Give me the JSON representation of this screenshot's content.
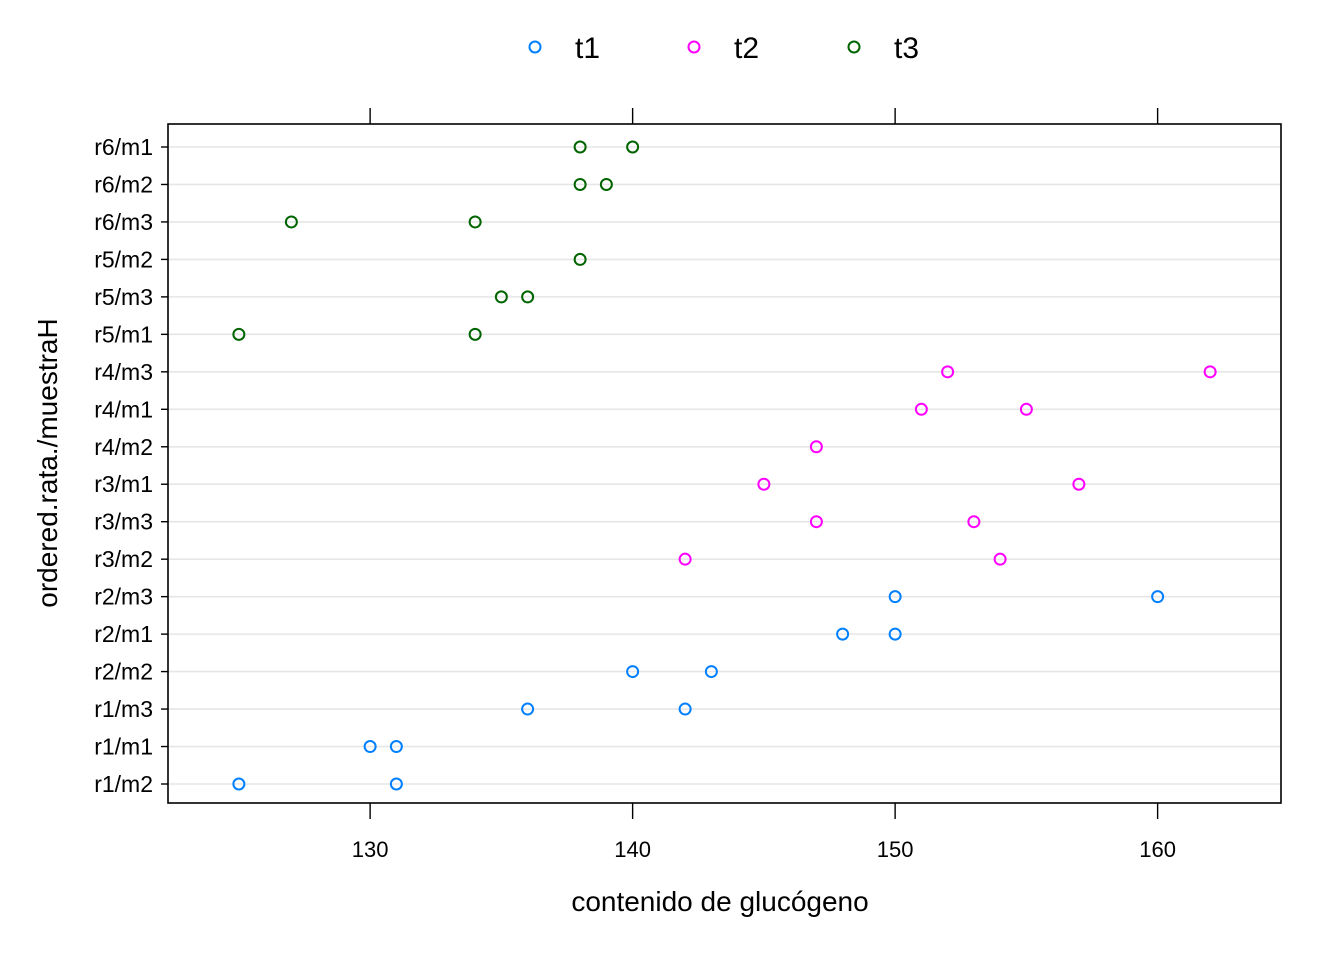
{
  "chart_data": {
    "type": "scatter",
    "xlabel": "contenido de glucógeno",
    "ylabel": "ordered.rata./muestraH",
    "xlim": [
      122.3,
      164.7
    ],
    "xticks": [
      130,
      140,
      150,
      160
    ],
    "grid": "horizontal",
    "legend_position": "top",
    "categories": [
      "r1/m2",
      "r1/m1",
      "r1/m3",
      "r2/m2",
      "r2/m1",
      "r2/m3",
      "r3/m2",
      "r3/m3",
      "r3/m1",
      "r4/m2",
      "r4/m1",
      "r4/m3",
      "r5/m1",
      "r5/m3",
      "r5/m2",
      "r6/m3",
      "r6/m2",
      "r6/m1"
    ],
    "series": [
      {
        "name": "t1",
        "color": "#0080ff",
        "points": [
          {
            "y": "r1/m2",
            "x": 125
          },
          {
            "y": "r1/m2",
            "x": 131
          },
          {
            "y": "r1/m1",
            "x": 130
          },
          {
            "y": "r1/m1",
            "x": 131
          },
          {
            "y": "r1/m3",
            "x": 136
          },
          {
            "y": "r1/m3",
            "x": 142
          },
          {
            "y": "r2/m2",
            "x": 140
          },
          {
            "y": "r2/m2",
            "x": 143
          },
          {
            "y": "r2/m1",
            "x": 148
          },
          {
            "y": "r2/m1",
            "x": 150
          },
          {
            "y": "r2/m3",
            "x": 150
          },
          {
            "y": "r2/m3",
            "x": 160
          }
        ]
      },
      {
        "name": "t2",
        "color": "#ff00ff",
        "points": [
          {
            "y": "r3/m2",
            "x": 142
          },
          {
            "y": "r3/m2",
            "x": 154
          },
          {
            "y": "r3/m3",
            "x": 147
          },
          {
            "y": "r3/m3",
            "x": 153
          },
          {
            "y": "r3/m1",
            "x": 145
          },
          {
            "y": "r3/m1",
            "x": 157
          },
          {
            "y": "r4/m2",
            "x": 147
          },
          {
            "y": "r4/m1",
            "x": 151
          },
          {
            "y": "r4/m1",
            "x": 155
          },
          {
            "y": "r4/m3",
            "x": 152
          },
          {
            "y": "r4/m3",
            "x": 162
          }
        ]
      },
      {
        "name": "t3",
        "color": "#006400",
        "points": [
          {
            "y": "r5/m1",
            "x": 125
          },
          {
            "y": "r5/m1",
            "x": 134
          },
          {
            "y": "r5/m3",
            "x": 135
          },
          {
            "y": "r5/m3",
            "x": 136
          },
          {
            "y": "r5/m2",
            "x": 138
          },
          {
            "y": "r6/m3",
            "x": 127
          },
          {
            "y": "r6/m3",
            "x": 134
          },
          {
            "y": "r6/m2",
            "x": 138
          },
          {
            "y": "r6/m2",
            "x": 139
          },
          {
            "y": "r6/m1",
            "x": 138
          },
          {
            "y": "r6/m1",
            "x": 140
          }
        ]
      }
    ]
  }
}
